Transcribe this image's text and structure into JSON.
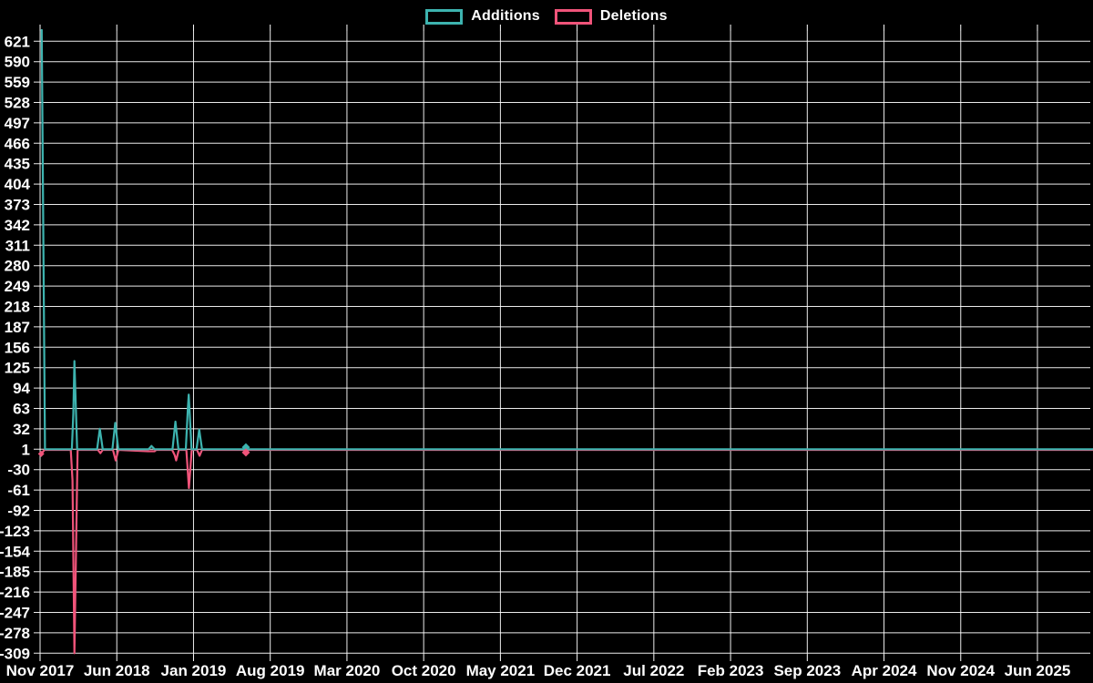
{
  "legend": {
    "additions_label": "Additions",
    "deletions_label": "Deletions"
  },
  "colors": {
    "background": "#000000",
    "grid": "#ffffff",
    "text": "#ffffff",
    "additions": "#3db3af",
    "deletions": "#f0547a"
  },
  "chart_data": {
    "type": "line",
    "title": "",
    "xlabel": "",
    "ylabel": "",
    "x_axis": {
      "unit": "months_since_nov_2017",
      "tick_labels": [
        "Nov 2017",
        "Jun 2018",
        "Jan 2019",
        "Aug 2019",
        "Mar 2020",
        "Oct 2020",
        "May 2021",
        "Dec 2021",
        "Jul 2022",
        "Feb 2023",
        "Sep 2023",
        "Apr 2024",
        "Nov 2024",
        "Jun 2025"
      ],
      "tick_month_offsets": [
        0,
        7,
        14,
        21,
        28,
        35,
        42,
        49,
        56,
        63,
        70,
        77,
        84,
        91
      ],
      "grid": true
    },
    "y_axis": {
      "ticks": [
        621,
        590,
        559,
        528,
        497,
        466,
        435,
        404,
        373,
        342,
        311,
        280,
        249,
        218,
        187,
        156,
        125,
        94,
        63,
        32,
        1,
        -30,
        -61,
        -92,
        -123,
        -154,
        -185,
        -216,
        -247,
        -278,
        -309
      ],
      "tick_step": 31,
      "range_estimate": [
        -313,
        639
      ],
      "grid": true
    },
    "legend_position": "top-center",
    "series": [
      {
        "name": "Additions",
        "color": "#3db3af",
        "baseline_value": 1,
        "points": [
          [
            0.15,
            638
          ],
          [
            0.45,
            1
          ],
          [
            2.9,
            1
          ],
          [
            3.03,
            55
          ],
          [
            3.13,
            135
          ],
          [
            3.38,
            1
          ],
          [
            5.2,
            1
          ],
          [
            5.45,
            32
          ],
          [
            5.72,
            1
          ],
          [
            6.6,
            1
          ],
          [
            6.86,
            41
          ],
          [
            7.14,
            1
          ],
          [
            9.9,
            1
          ],
          [
            10.16,
            6
          ],
          [
            10.45,
            1
          ],
          [
            12.08,
            1
          ],
          [
            12.35,
            43
          ],
          [
            12.62,
            1
          ],
          [
            13.3,
            1
          ],
          [
            13.48,
            62
          ],
          [
            13.56,
            84
          ],
          [
            13.82,
            1
          ],
          [
            14.28,
            1
          ],
          [
            14.52,
            31
          ],
          [
            14.78,
            1
          ],
          [
            18.55,
            1
          ],
          [
            18.78,
            4
          ],
          [
            19.0,
            1
          ],
          [
            96.2,
            1
          ]
        ]
      },
      {
        "name": "Deletions",
        "color": "#f0547a",
        "baseline_value": 0,
        "points": [
          [
            0.1,
            -6
          ],
          [
            0.4,
            0
          ],
          [
            2.8,
            0
          ],
          [
            2.96,
            -46
          ],
          [
            3.13,
            -309
          ],
          [
            3.42,
            0
          ],
          [
            5.28,
            0
          ],
          [
            5.5,
            -5
          ],
          [
            5.72,
            0
          ],
          [
            6.65,
            0
          ],
          [
            6.9,
            -16
          ],
          [
            7.15,
            0
          ],
          [
            9.85,
            -2
          ],
          [
            10.45,
            -2
          ],
          [
            10.6,
            0
          ],
          [
            12.05,
            0
          ],
          [
            12.28,
            -8
          ],
          [
            12.42,
            -16
          ],
          [
            12.66,
            0
          ],
          [
            13.35,
            0
          ],
          [
            13.58,
            -58
          ],
          [
            13.84,
            0
          ],
          [
            14.32,
            0
          ],
          [
            14.55,
            -9
          ],
          [
            14.78,
            0
          ],
          [
            18.55,
            0
          ],
          [
            18.78,
            -4
          ],
          [
            19.0,
            0
          ],
          [
            96.2,
            0
          ]
        ]
      }
    ],
    "markers": [
      {
        "series": "Additions",
        "x": 18.78,
        "y": 4,
        "size": 4.5
      },
      {
        "series": "Deletions",
        "x": 18.78,
        "y": -4,
        "size": 4.5
      },
      {
        "series": "Deletions",
        "x": 0.1,
        "y": -6,
        "size": 3.5
      }
    ]
  }
}
